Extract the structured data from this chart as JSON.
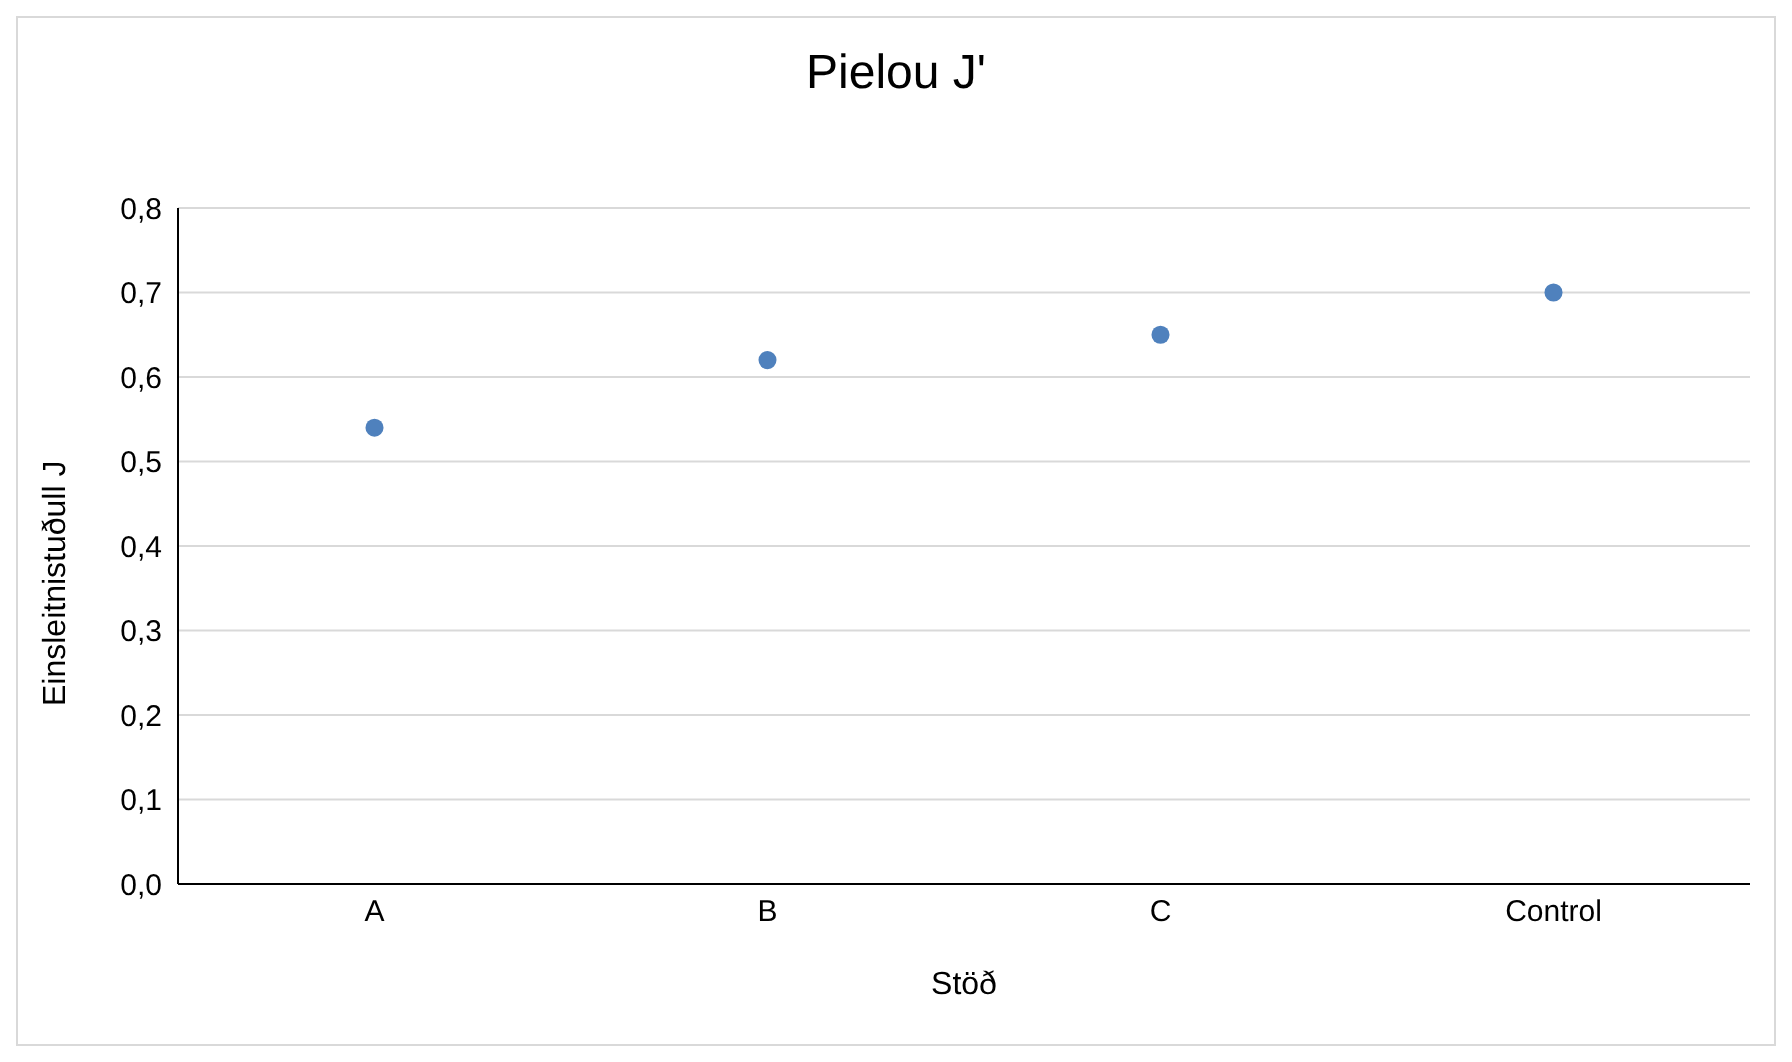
{
  "chart_data": {
    "type": "scatter",
    "title": "Pielou J'",
    "xlabel": "Stöð",
    "ylabel": "Einsleitnistuðull J",
    "categories": [
      "A",
      "B",
      "C",
      "Control"
    ],
    "series": [
      {
        "color": "#4f81bd",
        "values": [
          0.54,
          0.62,
          0.65,
          0.7
        ]
      }
    ],
    "ylim": [
      0,
      0.8
    ],
    "yticks": [
      {
        "value": 0,
        "label": "0,0"
      },
      {
        "value": 0.1,
        "label": "0,1"
      },
      {
        "value": 0.2,
        "label": "0,2"
      },
      {
        "value": 0.3,
        "label": "0,3"
      },
      {
        "value": 0.4,
        "label": "0,4"
      },
      {
        "value": 0.5,
        "label": "0,5"
      },
      {
        "value": 0.6,
        "label": "0,6"
      },
      {
        "value": 0.7,
        "label": "0,7"
      },
      {
        "value": 0.8,
        "label": "0,8"
      }
    ],
    "grid": "y",
    "marker": "circle"
  }
}
